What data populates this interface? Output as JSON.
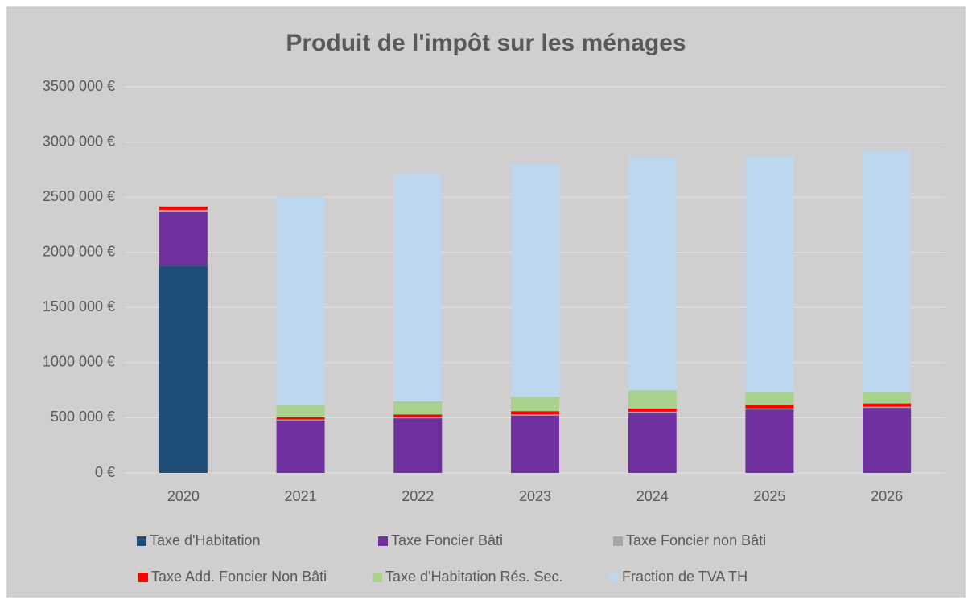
{
  "chart_data": {
    "type": "stacked_bar",
    "title": "Produit de l'impôt sur les ménages",
    "categories": [
      "2020",
      "2021",
      "2022",
      "2023",
      "2024",
      "2025",
      "2026"
    ],
    "series": [
      {
        "name": "Taxe d'Habitation",
        "color": "#1f4e79",
        "values": [
          1880000,
          0,
          0,
          0,
          0,
          0,
          0
        ]
      },
      {
        "name": "Taxe Foncier Bâti",
        "color": "#7030a0",
        "values": [
          490000,
          474000,
          495000,
          520000,
          545000,
          575000,
          590000
        ]
      },
      {
        "name": "Taxe Foncier non Bâti",
        "color": "#a5a5a5",
        "values": [
          15000,
          10000,
          10000,
          10000,
          10000,
          10000,
          10000
        ]
      },
      {
        "name": "Taxe Add. Foncier Non Bâti",
        "color": "#ff0000",
        "values": [
          30000,
          20000,
          25000,
          30000,
          30000,
          30000,
          30000
        ]
      },
      {
        "name": "Taxe d'Habitation Rés. Sec.",
        "color": "#a9d18e",
        "values": [
          0,
          110000,
          120000,
          130000,
          165000,
          115000,
          100000
        ]
      },
      {
        "name": "Fraction de TVA TH",
        "color": "#bdd7ee",
        "values": [
          0,
          1890000,
          2062000,
          2110000,
          2115000,
          2140000,
          2195000
        ]
      }
    ],
    "ylim": [
      0,
      3500000
    ],
    "yticks": [
      {
        "value": 0,
        "label": "0 €"
      },
      {
        "value": 500000,
        "label": "500 000 €"
      },
      {
        "value": 1000000,
        "label": "1000 000 €"
      },
      {
        "value": 1500000,
        "label": "1500 000 €"
      },
      {
        "value": 2000000,
        "label": "2000 000 €"
      },
      {
        "value": 2500000,
        "label": "2500 000 €"
      },
      {
        "value": 3000000,
        "label": "3000 000 €"
      },
      {
        "value": 3500000,
        "label": "3500 000 €"
      }
    ],
    "grid": true,
    "legend": "bottom"
  }
}
